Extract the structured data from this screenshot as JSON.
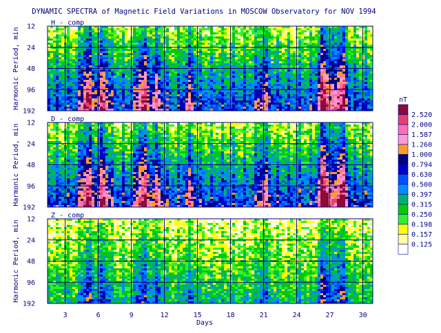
{
  "chart_data": {
    "type": "heatmap",
    "title": "DYNAMIC SPECTRA of Magnetic Field Variations in MOSCOW Observatory for NOV 1994",
    "xlabel": "Days",
    "ylabel": "Harmonic Period, min",
    "x_ticks": [
      "3",
      "6",
      "9",
      "12",
      "15",
      "18",
      "21",
      "24",
      "27",
      "30"
    ],
    "x_tick_values": [
      3,
      6,
      9,
      12,
      15,
      18,
      21,
      24,
      27,
      30
    ],
    "xlim": [
      1.4,
      30.9
    ],
    "y_ticks": [
      "12",
      "24",
      "48",
      "96",
      "192"
    ],
    "y_tick_values": [
      12,
      24,
      48,
      96,
      192
    ],
    "y_scale": "log2",
    "ylim": [
      12,
      192
    ],
    "grid": true,
    "panels": [
      {
        "name": "H - comp",
        "intensity": 1.0
      },
      {
        "name": "D - comp",
        "intensity": 1.05
      },
      {
        "name": "Z - comp",
        "intensity": 0.62
      }
    ],
    "colorbar": {
      "unit": "nT",
      "levels": [
        "2.520",
        "2.000",
        "1.587",
        "1.260",
        "1.000",
        "0.794",
        "0.630",
        "0.500",
        "0.397",
        "0.315",
        "0.250",
        "0.198",
        "0.157",
        "0.125"
      ],
      "colors": [
        "#8b0a3c",
        "#e8406e",
        "#ff6eb0",
        "#ff9ad0",
        "#ff9a28",
        "#00007a",
        "#0000cc",
        "#0050ff",
        "#008cff",
        "#00b070",
        "#00cc00",
        "#33ee33",
        "#ffff00",
        "#ffffa0",
        "#ffffff"
      ]
    },
    "storm_days": [
      {
        "day": 5.0,
        "strength": 0.8
      },
      {
        "day": 6.5,
        "strength": 0.7
      },
      {
        "day": 10.0,
        "strength": 0.8
      },
      {
        "day": 11.3,
        "strength": 0.5
      },
      {
        "day": 14.3,
        "strength": 0.4
      },
      {
        "day": 21.0,
        "strength": 0.5
      },
      {
        "day": 26.5,
        "strength": 1.0
      },
      {
        "day": 28.0,
        "strength": 0.9
      }
    ]
  }
}
